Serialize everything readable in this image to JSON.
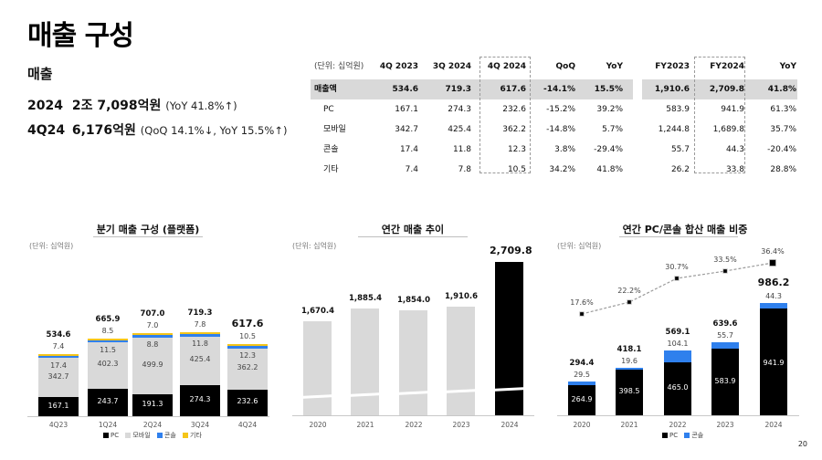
{
  "page": {
    "title": "매출 구성",
    "page_number": "20"
  },
  "summary": {
    "section_title": "매출",
    "annual": {
      "period": "2024",
      "value": "2조 7,098억원",
      "note": "(YoY 41.8%↑)"
    },
    "quarter": {
      "period": "4Q24",
      "value": "6,176억원",
      "note": "(QoQ 14.1%↓, YoY 15.5%↑)"
    }
  },
  "table": {
    "unit": "(단위: 십억원)",
    "columns": [
      "4Q 2023",
      "3Q 2024",
      "4Q 2024",
      "QoQ",
      "YoY",
      "FY2023",
      "FY2024",
      "YoY"
    ],
    "rows": [
      {
        "label": "매출액",
        "values": [
          "534.6",
          "719.3",
          "617.6",
          "-14.1%",
          "15.5%",
          "1,910.6",
          "2,709.8",
          "41.8%"
        ]
      },
      {
        "label": "PC",
        "values": [
          "167.1",
          "274.3",
          "232.6",
          "-15.2%",
          "39.2%",
          "583.9",
          "941.9",
          "61.3%"
        ]
      },
      {
        "label": "모바일",
        "values": [
          "342.7",
          "425.4",
          "362.2",
          "-14.8%",
          "5.7%",
          "1,244.8",
          "1,689.8",
          "35.7%"
        ]
      },
      {
        "label": "콘솔",
        "values": [
          "17.4",
          "11.8",
          "12.3",
          "3.8%",
          "-29.4%",
          "55.7",
          "44.3",
          "-20.4%"
        ]
      },
      {
        "label": "기타",
        "values": [
          "7.4",
          "7.8",
          "10.5",
          "34.2%",
          "41.8%",
          "26.2",
          "33.8",
          "28.8%"
        ]
      }
    ]
  },
  "colors": {
    "pc": "#000000",
    "mobile": "#d9d9d9",
    "console": "#2f80ed",
    "other": "#f5c518",
    "total_row_bg": "#d9d9d9"
  },
  "chart_data": [
    {
      "type": "bar",
      "stacked": true,
      "title": "분기 매출 구성 (플랫폼)",
      "unit": "(단위: 십억원)",
      "categories": [
        "4Q23",
        "1Q24",
        "2Q24",
        "3Q24",
        "4Q24"
      ],
      "series": [
        {
          "name": "PC",
          "values": [
            167.1,
            243.7,
            191.3,
            274.3,
            232.6
          ]
        },
        {
          "name": "모바일",
          "values": [
            342.7,
            402.3,
            499.9,
            425.4,
            362.2
          ]
        },
        {
          "name": "콘솔",
          "values": [
            17.4,
            11.5,
            8.8,
            11.8,
            12.3
          ]
        },
        {
          "name": "기타",
          "values": [
            7.4,
            8.5,
            7.0,
            7.8,
            10.5
          ]
        }
      ],
      "totals": [
        534.6,
        665.9,
        707.0,
        719.3,
        617.6
      ],
      "legend": [
        "PC",
        "모바일",
        "콘솔",
        "기타"
      ],
      "legend_position": "bottom",
      "grid": false
    },
    {
      "type": "bar",
      "title": "연간 매출 추이",
      "unit": "(단위: 십억원)",
      "categories": [
        "2020",
        "2021",
        "2022",
        "2023",
        "2024"
      ],
      "values": [
        1670.4,
        1885.4,
        1854.0,
        1910.6,
        2709.8
      ],
      "value_labels": [
        "1,670.4",
        "1,885.4",
        "1,854.0",
        "1,910.6",
        "2,709.8"
      ],
      "highlight": "2024",
      "axis_break": true,
      "grid": false
    },
    {
      "type": "bar",
      "stacked": true,
      "title": "연간 PC/콘솔 합산 매출 비중",
      "unit": "(단위: 십억원)",
      "categories": [
        "2020",
        "2021",
        "2022",
        "2023",
        "2024"
      ],
      "series": [
        {
          "name": "PC",
          "values": [
            264.9,
            398.5,
            465.0,
            583.9,
            941.9
          ]
        },
        {
          "name": "콘솔",
          "values": [
            29.5,
            19.6,
            104.1,
            55.7,
            44.3
          ]
        }
      ],
      "totals": [
        294.4,
        418.1,
        569.1,
        639.6,
        986.2
      ],
      "line_series": {
        "name": "비중",
        "type": "line",
        "values": [
          17.6,
          22.2,
          30.7,
          33.5,
          36.4
        ],
        "labels": [
          "17.6%",
          "22.2%",
          "30.7%",
          "33.5%",
          "36.4%"
        ]
      },
      "legend": [
        "PC",
        "콘솔"
      ],
      "legend_position": "bottom",
      "grid": false
    }
  ],
  "charts_text": {
    "c1": {
      "title": "분기 매출 구성 (플랫폼)",
      "unit": "(단위: 십억원)",
      "x": [
        "4Q23",
        "1Q24",
        "2Q24",
        "3Q24",
        "4Q24"
      ],
      "totals": [
        "534.6",
        "665.9",
        "707.0",
        "719.3",
        "617.6"
      ],
      "pc": [
        "167.1",
        "243.7",
        "191.3",
        "274.3",
        "232.6"
      ],
      "mobile": [
        "342.7",
        "402.3",
        "499.9",
        "425.4",
        "362.2"
      ],
      "console": [
        "17.4",
        "11.5",
        "8.8",
        "11.8",
        "12.3"
      ],
      "other": [
        "7.4",
        "8.5",
        "7.0",
        "7.8",
        "10.5"
      ],
      "legend": [
        "PC",
        "모바일",
        "콘솔",
        "기타"
      ]
    },
    "c2": {
      "title": "연간 매출 추이",
      "unit": "(단위: 십억원)",
      "x": [
        "2020",
        "2021",
        "2022",
        "2023",
        "2024"
      ],
      "values": [
        "1,670.4",
        "1,885.4",
        "1,854.0",
        "1,910.6",
        "2,709.8"
      ]
    },
    "c3": {
      "title": "연간 PC/콘솔 합산 매출 비중",
      "unit": "(단위: 십억원)",
      "x": [
        "2020",
        "2021",
        "2022",
        "2023",
        "2024"
      ],
      "totals": [
        "294.4",
        "418.1",
        "569.1",
        "639.6",
        "986.2"
      ],
      "pc": [
        "264.9",
        "398.5",
        "465.0",
        "583.9",
        "941.9"
      ],
      "console": [
        "29.5",
        "19.6",
        "104.1",
        "55.7",
        "44.3"
      ],
      "pct": [
        "17.6%",
        "22.2%",
        "30.7%",
        "33.5%",
        "36.4%"
      ],
      "legend": [
        "PC",
        "콘솔"
      ]
    }
  }
}
